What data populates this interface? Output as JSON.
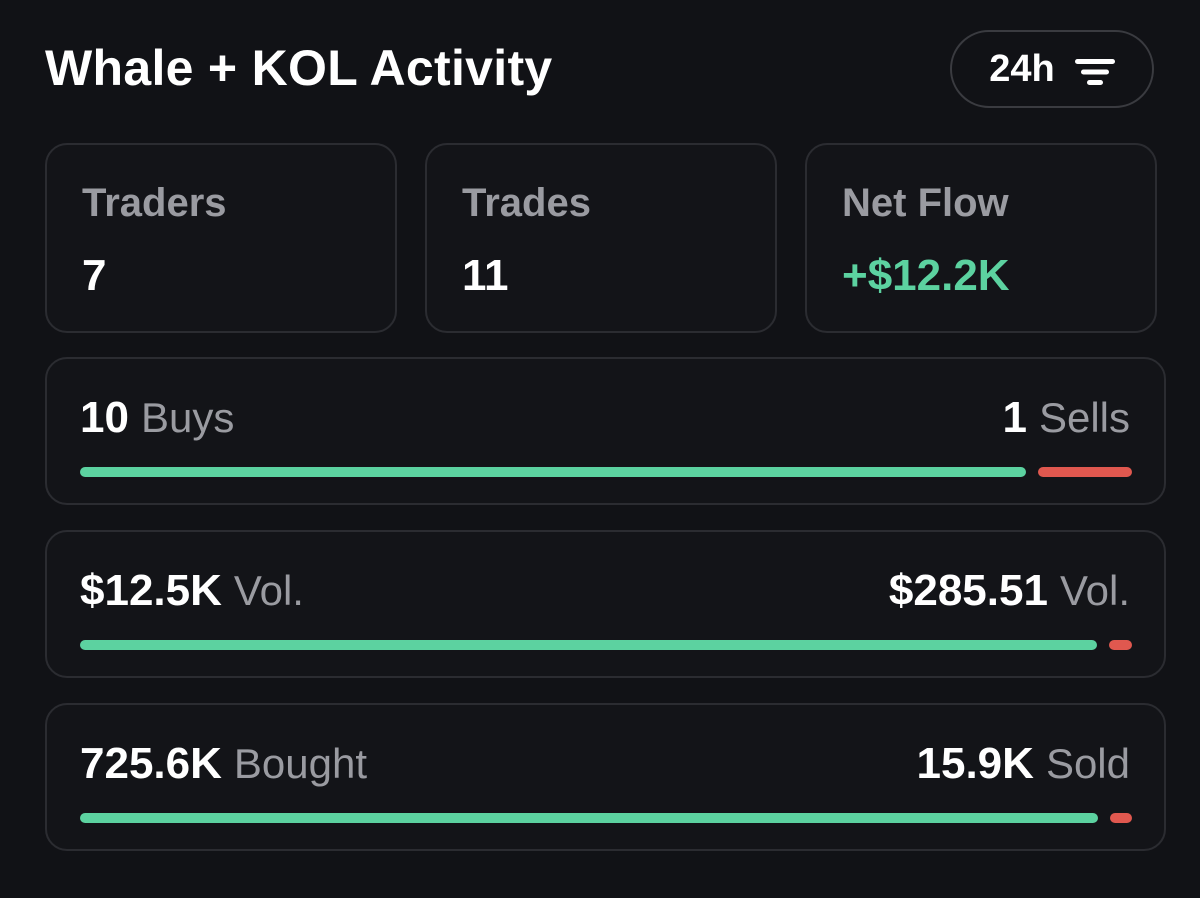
{
  "title": "Whale + KOL Activity",
  "period_button": {
    "label": "24h",
    "icon": "filter-icon"
  },
  "stats": [
    {
      "label": "Traders",
      "value": "7"
    },
    {
      "label": "Trades",
      "value": "11"
    },
    {
      "label": "Net Flow",
      "value": "+$12.2K"
    }
  ],
  "rows": [
    {
      "left_value": "10",
      "left_unit": "Buys",
      "right_value": "1",
      "right_unit": "Sells",
      "buy_fraction": 0.91
    },
    {
      "left_value": "$12.5K",
      "left_unit": "Vol.",
      "right_value": "$285.51",
      "right_unit": "Vol.",
      "buy_fraction": 0.978
    },
    {
      "left_value": "725.6K",
      "left_unit": "Bought",
      "right_value": "15.9K",
      "right_unit": "Sold",
      "buy_fraction": 0.979
    }
  ],
  "colors": {
    "background": "#111216",
    "buy": "#5cd2a0",
    "sell": "#e0584f",
    "muted_text": "#9a9ba1"
  }
}
